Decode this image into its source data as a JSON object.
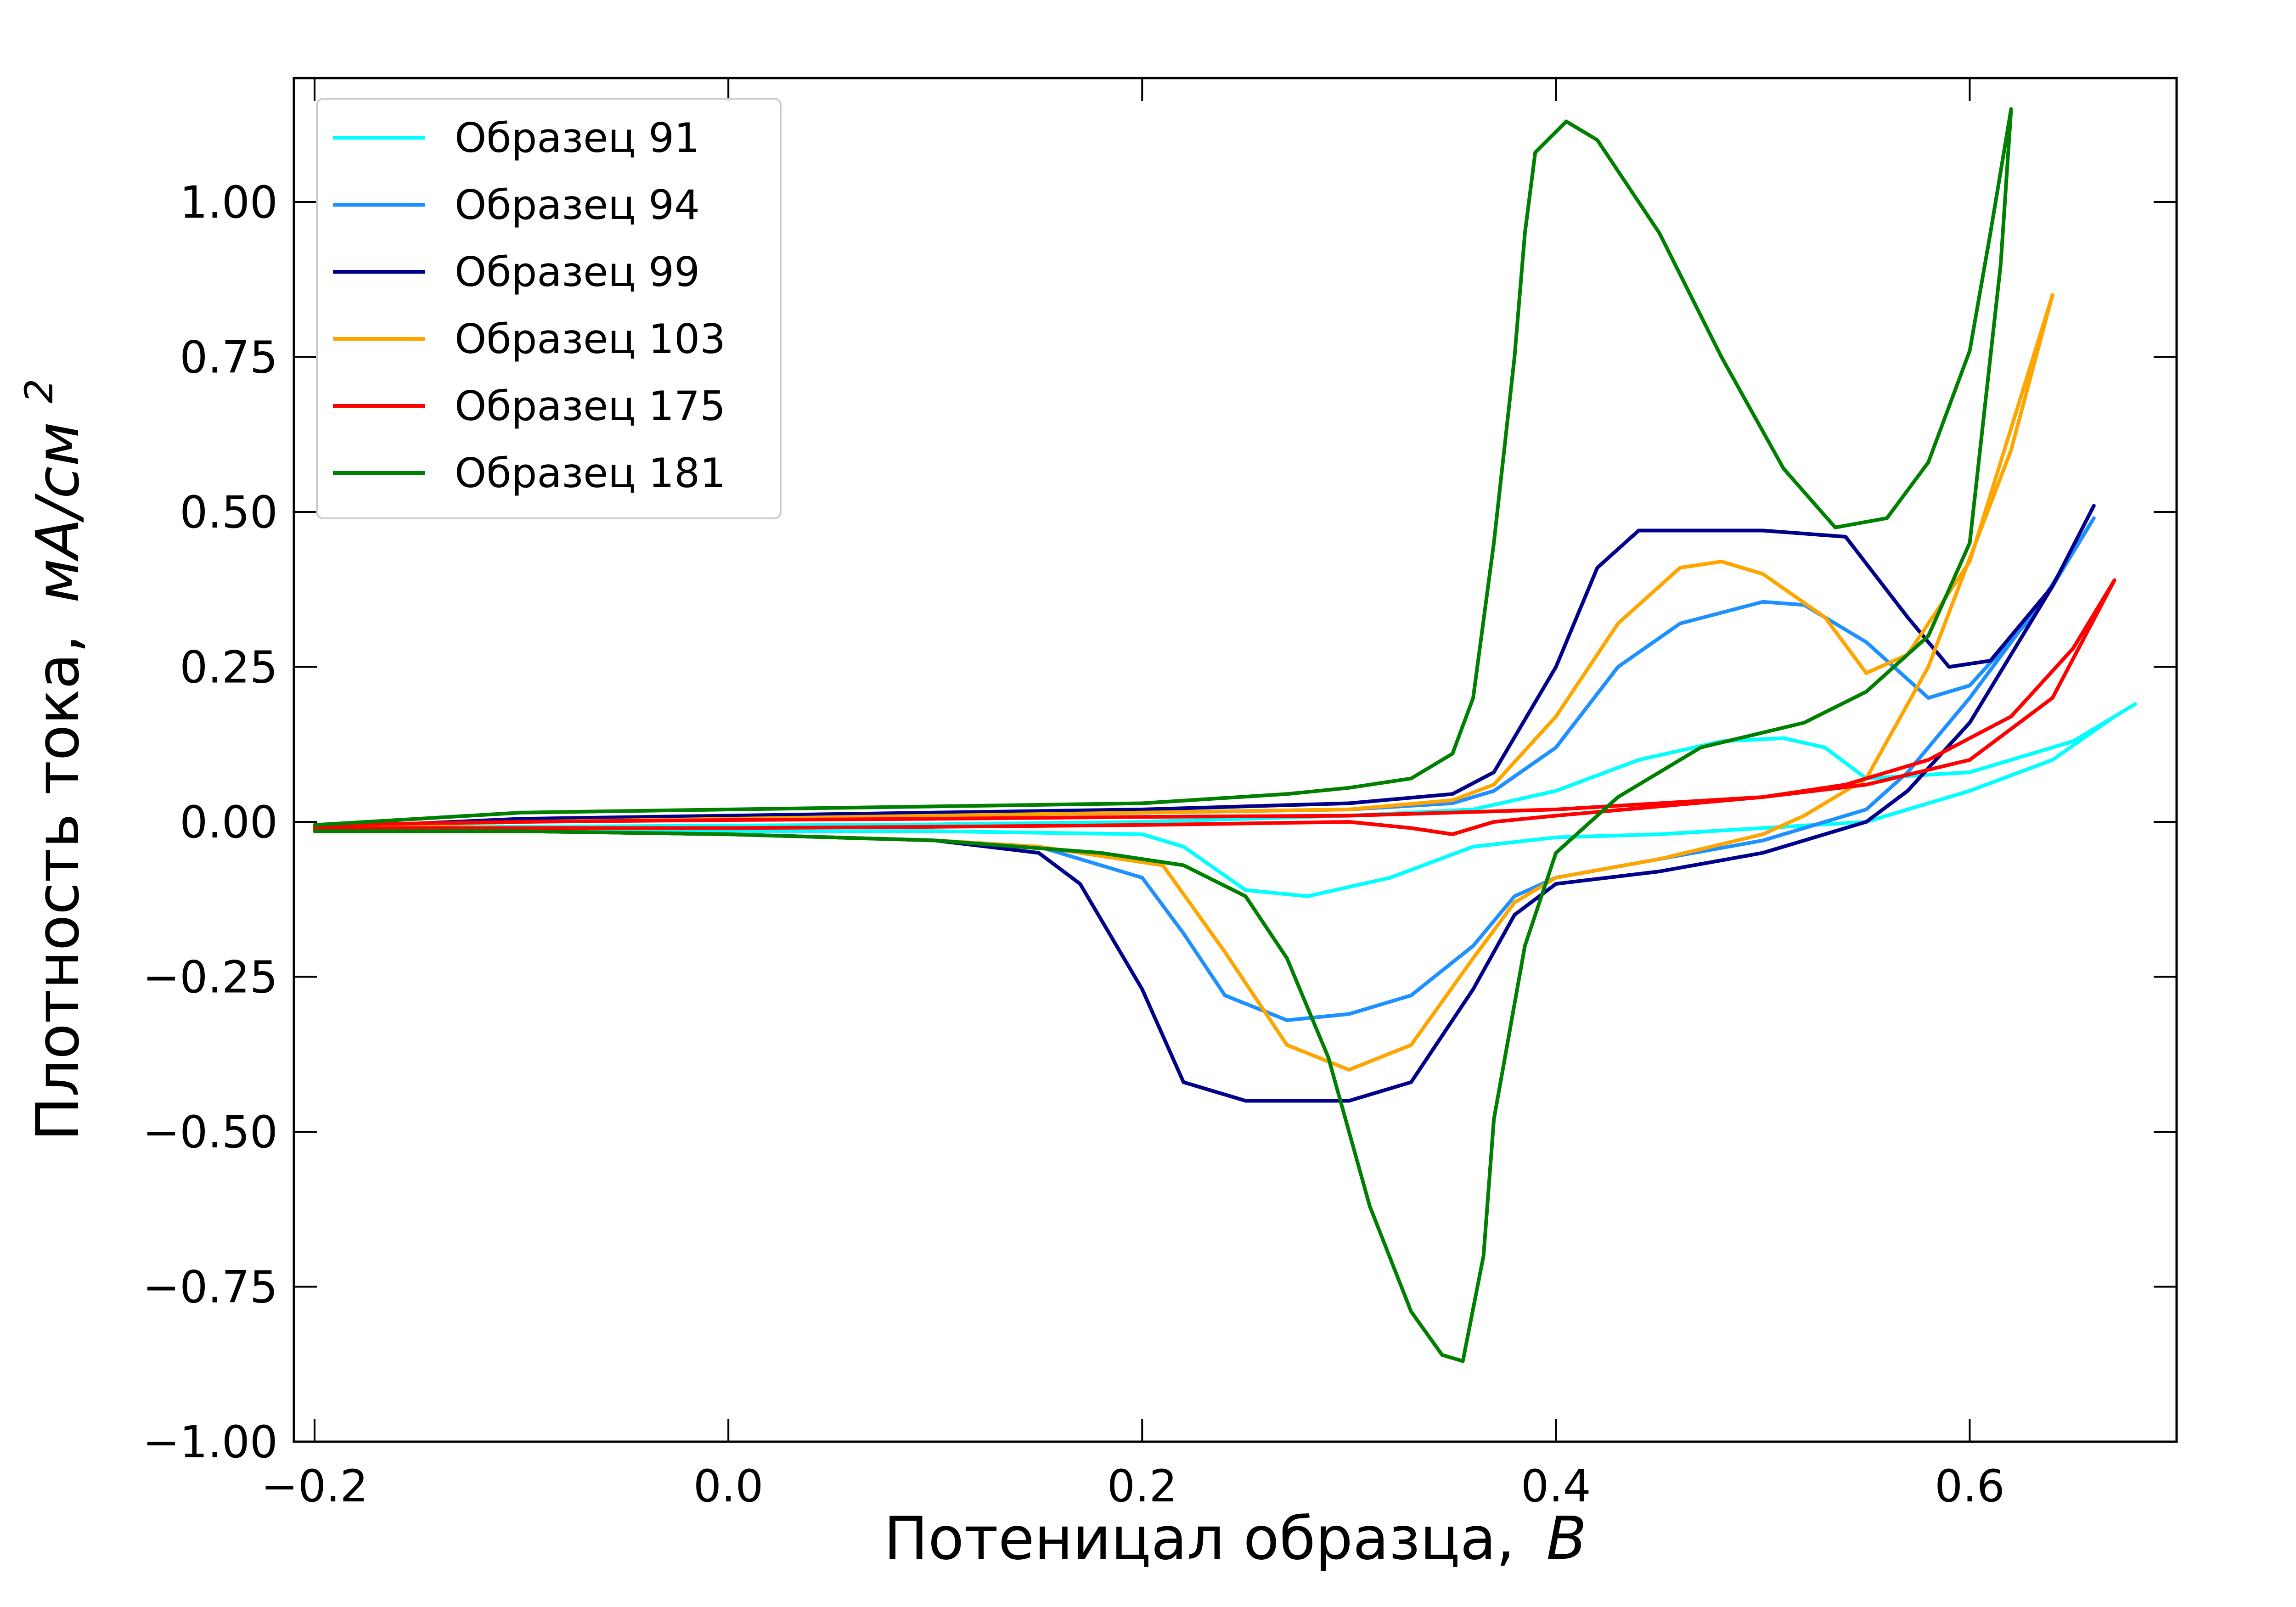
{
  "chart_data": {
    "type": "line",
    "title": "",
    "xlabel": "Потеницал образца,",
    "xlabel_unit": "В",
    "ylabel": "Плотность тока,",
    "ylabel_unit": "мА/см",
    "ylabel_unit_sup": "2",
    "xlim": [
      -0.21,
      0.7
    ],
    "ylim": [
      -1.0,
      1.2
    ],
    "x_ticks": [
      -0.2,
      0.0,
      0.2,
      0.4,
      0.6
    ],
    "x_tick_labels": [
      "−0.2",
      "0.0",
      "0.2",
      "0.4",
      "0.6"
    ],
    "y_ticks": [
      -1.0,
      -0.75,
      -0.5,
      -0.25,
      0.0,
      0.25,
      0.5,
      0.75,
      1.0
    ],
    "y_tick_labels": [
      "−1.00",
      "−0.75",
      "−0.50",
      "−0.25",
      "0.00",
      "0.25",
      "0.50",
      "0.75",
      "1.00"
    ],
    "grid": false,
    "legend_position": "top-left",
    "series": [
      {
        "name": "Образец 91",
        "color": "#00FFFF",
        "points": [
          [
            -0.2,
            -0.01
          ],
          [
            -0.1,
            -0.008
          ],
          [
            0.0,
            -0.006
          ],
          [
            0.1,
            -0.004
          ],
          [
            0.2,
            0.0
          ],
          [
            0.3,
            0.01
          ],
          [
            0.36,
            0.02
          ],
          [
            0.4,
            0.05
          ],
          [
            0.44,
            0.1
          ],
          [
            0.48,
            0.13
          ],
          [
            0.51,
            0.135
          ],
          [
            0.53,
            0.12
          ],
          [
            0.55,
            0.07
          ],
          [
            0.6,
            0.08
          ],
          [
            0.65,
            0.13
          ],
          [
            0.68,
            0.19
          ],
          [
            0.67,
            0.17
          ],
          [
            0.64,
            0.1
          ],
          [
            0.6,
            0.05
          ],
          [
            0.55,
            0.0
          ],
          [
            0.5,
            -0.01
          ],
          [
            0.45,
            -0.02
          ],
          [
            0.4,
            -0.025
          ],
          [
            0.36,
            -0.04
          ],
          [
            0.32,
            -0.09
          ],
          [
            0.28,
            -0.12
          ],
          [
            0.25,
            -0.11
          ],
          [
            0.22,
            -0.04
          ],
          [
            0.2,
            -0.02
          ],
          [
            0.1,
            -0.015
          ],
          [
            0.0,
            -0.015
          ],
          [
            -0.1,
            -0.015
          ],
          [
            -0.2,
            -0.015
          ]
        ]
      },
      {
        "name": "Образец 94",
        "color": "#1E90FF",
        "points": [
          [
            -0.2,
            -0.01
          ],
          [
            -0.1,
            0.0
          ],
          [
            0.0,
            0.005
          ],
          [
            0.1,
            0.01
          ],
          [
            0.2,
            0.015
          ],
          [
            0.3,
            0.02
          ],
          [
            0.35,
            0.03
          ],
          [
            0.37,
            0.05
          ],
          [
            0.4,
            0.12
          ],
          [
            0.43,
            0.25
          ],
          [
            0.46,
            0.32
          ],
          [
            0.5,
            0.355
          ],
          [
            0.52,
            0.35
          ],
          [
            0.55,
            0.29
          ],
          [
            0.58,
            0.2
          ],
          [
            0.6,
            0.22
          ],
          [
            0.63,
            0.33
          ],
          [
            0.66,
            0.49
          ],
          [
            0.64,
            0.38
          ],
          [
            0.6,
            0.2
          ],
          [
            0.57,
            0.08
          ],
          [
            0.55,
            0.02
          ],
          [
            0.5,
            -0.03
          ],
          [
            0.45,
            -0.06
          ],
          [
            0.4,
            -0.09
          ],
          [
            0.38,
            -0.12
          ],
          [
            0.36,
            -0.2
          ],
          [
            0.33,
            -0.28
          ],
          [
            0.3,
            -0.31
          ],
          [
            0.27,
            -0.32
          ],
          [
            0.24,
            -0.28
          ],
          [
            0.22,
            -0.18
          ],
          [
            0.2,
            -0.09
          ],
          [
            0.15,
            -0.04
          ],
          [
            0.1,
            -0.03
          ],
          [
            0.0,
            -0.02
          ],
          [
            -0.1,
            -0.015
          ],
          [
            -0.2,
            -0.015
          ]
        ]
      },
      {
        "name": "Образец 99",
        "color": "#00008B",
        "points": [
          [
            -0.2,
            -0.01
          ],
          [
            -0.1,
            0.005
          ],
          [
            0.0,
            0.01
          ],
          [
            0.1,
            0.015
          ],
          [
            0.2,
            0.02
          ],
          [
            0.3,
            0.03
          ],
          [
            0.35,
            0.045
          ],
          [
            0.37,
            0.08
          ],
          [
            0.4,
            0.25
          ],
          [
            0.42,
            0.41
          ],
          [
            0.44,
            0.47
          ],
          [
            0.46,
            0.47
          ],
          [
            0.5,
            0.47
          ],
          [
            0.54,
            0.46
          ],
          [
            0.57,
            0.33
          ],
          [
            0.59,
            0.25
          ],
          [
            0.61,
            0.26
          ],
          [
            0.64,
            0.38
          ],
          [
            0.66,
            0.51
          ],
          [
            0.64,
            0.38
          ],
          [
            0.6,
            0.16
          ],
          [
            0.57,
            0.05
          ],
          [
            0.55,
            0.0
          ],
          [
            0.5,
            -0.05
          ],
          [
            0.45,
            -0.08
          ],
          [
            0.4,
            -0.1
          ],
          [
            0.38,
            -0.15
          ],
          [
            0.36,
            -0.27
          ],
          [
            0.33,
            -0.42
          ],
          [
            0.3,
            -0.45
          ],
          [
            0.25,
            -0.45
          ],
          [
            0.22,
            -0.42
          ],
          [
            0.2,
            -0.27
          ],
          [
            0.17,
            -0.1
          ],
          [
            0.15,
            -0.05
          ],
          [
            0.1,
            -0.03
          ],
          [
            0.0,
            -0.02
          ],
          [
            -0.1,
            -0.015
          ],
          [
            -0.2,
            -0.015
          ]
        ]
      },
      {
        "name": "Образец 103",
        "color": "#FFA500",
        "points": [
          [
            -0.2,
            -0.01
          ],
          [
            -0.1,
            0.0
          ],
          [
            0.0,
            0.005
          ],
          [
            0.1,
            0.01
          ],
          [
            0.2,
            0.015
          ],
          [
            0.3,
            0.02
          ],
          [
            0.35,
            0.035
          ],
          [
            0.37,
            0.06
          ],
          [
            0.4,
            0.17
          ],
          [
            0.43,
            0.32
          ],
          [
            0.46,
            0.41
          ],
          [
            0.48,
            0.42
          ],
          [
            0.5,
            0.4
          ],
          [
            0.53,
            0.33
          ],
          [
            0.55,
            0.24
          ],
          [
            0.57,
            0.27
          ],
          [
            0.6,
            0.42
          ],
          [
            0.64,
            0.85
          ],
          [
            0.62,
            0.6
          ],
          [
            0.58,
            0.25
          ],
          [
            0.55,
            0.07
          ],
          [
            0.52,
            0.01
          ],
          [
            0.5,
            -0.02
          ],
          [
            0.45,
            -0.06
          ],
          [
            0.4,
            -0.09
          ],
          [
            0.38,
            -0.13
          ],
          [
            0.36,
            -0.22
          ],
          [
            0.33,
            -0.36
          ],
          [
            0.3,
            -0.4
          ],
          [
            0.27,
            -0.36
          ],
          [
            0.24,
            -0.21
          ],
          [
            0.21,
            -0.07
          ],
          [
            0.15,
            -0.04
          ],
          [
            0.1,
            -0.03
          ],
          [
            0.0,
            -0.02
          ],
          [
            -0.1,
            -0.015
          ],
          [
            -0.2,
            -0.015
          ]
        ]
      },
      {
        "name": "Образец 175",
        "color": "#FF0000",
        "points": [
          [
            -0.2,
            -0.005
          ],
          [
            -0.1,
            0.0
          ],
          [
            0.0,
            0.003
          ],
          [
            0.1,
            0.005
          ],
          [
            0.2,
            0.008
          ],
          [
            0.3,
            0.01
          ],
          [
            0.4,
            0.02
          ],
          [
            0.45,
            0.03
          ],
          [
            0.5,
            0.04
          ],
          [
            0.55,
            0.06
          ],
          [
            0.6,
            0.1
          ],
          [
            0.64,
            0.2
          ],
          [
            0.67,
            0.39
          ],
          [
            0.65,
            0.28
          ],
          [
            0.62,
            0.17
          ],
          [
            0.58,
            0.1
          ],
          [
            0.54,
            0.06
          ],
          [
            0.5,
            0.04
          ],
          [
            0.45,
            0.025
          ],
          [
            0.4,
            0.01
          ],
          [
            0.37,
            0.0
          ],
          [
            0.35,
            -0.02
          ],
          [
            0.33,
            -0.01
          ],
          [
            0.3,
            0.0
          ],
          [
            0.2,
            -0.005
          ],
          [
            0.1,
            -0.008
          ],
          [
            0.0,
            -0.01
          ],
          [
            -0.1,
            -0.01
          ],
          [
            -0.2,
            -0.01
          ]
        ]
      },
      {
        "name": "Образец 181",
        "color": "#008000",
        "points": [
          [
            -0.2,
            -0.005
          ],
          [
            -0.1,
            0.015
          ],
          [
            0.0,
            0.02
          ],
          [
            0.1,
            0.025
          ],
          [
            0.2,
            0.03
          ],
          [
            0.27,
            0.045
          ],
          [
            0.3,
            0.055
          ],
          [
            0.33,
            0.07
          ],
          [
            0.35,
            0.11
          ],
          [
            0.36,
            0.2
          ],
          [
            0.37,
            0.45
          ],
          [
            0.38,
            0.75
          ],
          [
            0.385,
            0.95
          ],
          [
            0.39,
            1.08
          ],
          [
            0.405,
            1.13
          ],
          [
            0.42,
            1.1
          ],
          [
            0.45,
            0.95
          ],
          [
            0.48,
            0.75
          ],
          [
            0.51,
            0.57
          ],
          [
            0.535,
            0.475
          ],
          [
            0.56,
            0.49
          ],
          [
            0.58,
            0.58
          ],
          [
            0.6,
            0.76
          ],
          [
            0.61,
            0.95
          ],
          [
            0.62,
            1.15
          ],
          [
            0.615,
            0.9
          ],
          [
            0.6,
            0.45
          ],
          [
            0.58,
            0.3
          ],
          [
            0.55,
            0.21
          ],
          [
            0.52,
            0.16
          ],
          [
            0.47,
            0.12
          ],
          [
            0.43,
            0.04
          ],
          [
            0.4,
            -0.05
          ],
          [
            0.385,
            -0.2
          ],
          [
            0.37,
            -0.48
          ],
          [
            0.365,
            -0.7
          ],
          [
            0.355,
            -0.87
          ],
          [
            0.345,
            -0.86
          ],
          [
            0.33,
            -0.79
          ],
          [
            0.31,
            -0.62
          ],
          [
            0.29,
            -0.38
          ],
          [
            0.27,
            -0.22
          ],
          [
            0.25,
            -0.12
          ],
          [
            0.22,
            -0.07
          ],
          [
            0.18,
            -0.05
          ],
          [
            0.1,
            -0.03
          ],
          [
            0.0,
            -0.02
          ],
          [
            -0.1,
            -0.015
          ],
          [
            -0.2,
            -0.015
          ]
        ]
      }
    ]
  }
}
